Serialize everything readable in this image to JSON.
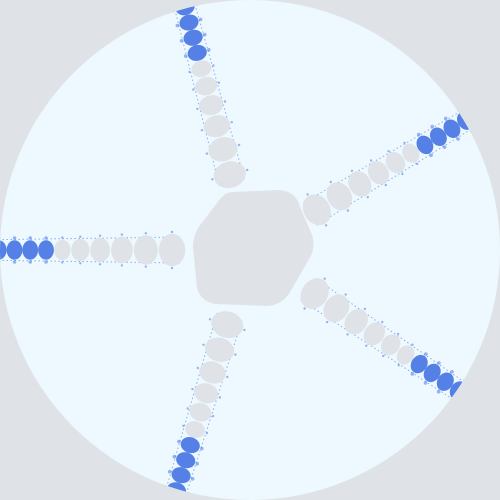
{
  "colors": {
    "background": "#dfe3e7",
    "disk": "#eef8ff",
    "center_region": "#dfe3e7",
    "inner_beads": "#dfe3e7",
    "outer_beads": "#5580e6",
    "filigree": "#3a6fe0"
  },
  "figure": {
    "arm_count": 5,
    "arm_headings_deg": [
      -105,
      -31,
      34,
      107,
      180
    ]
  }
}
